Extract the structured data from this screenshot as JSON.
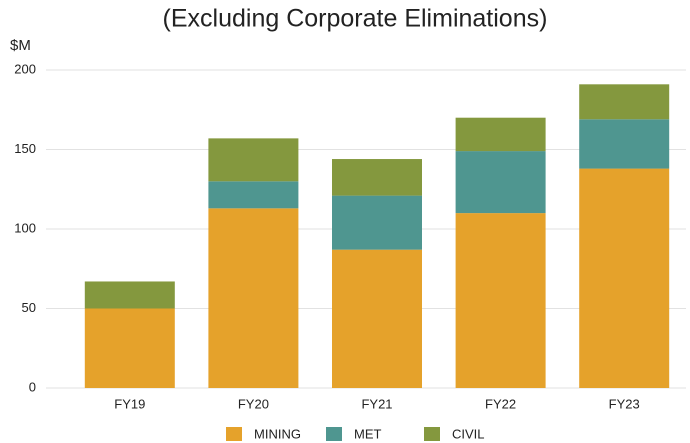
{
  "chart_data": {
    "type": "stacked-bar",
    "title": "(Excluding Corporate Eliminations)",
    "y_label": "$M",
    "categories": [
      "FY19",
      "FY20",
      "FY21",
      "FY22",
      "FY23"
    ],
    "series": [
      {
        "name": "MINING",
        "color": "#e5a22b",
        "values": [
          50,
          113,
          87,
          110,
          138
        ]
      },
      {
        "name": "MET",
        "color": "#4f9690",
        "values": [
          0,
          17,
          34,
          39,
          31
        ]
      },
      {
        "name": "CIVIL",
        "color": "#84983e",
        "values": [
          17,
          27,
          23,
          21,
          22
        ]
      }
    ],
    "ylim": [
      0,
      200
    ],
    "yticks": [
      0,
      50,
      100,
      150,
      200
    ],
    "grid": true,
    "legend": "bottom"
  }
}
